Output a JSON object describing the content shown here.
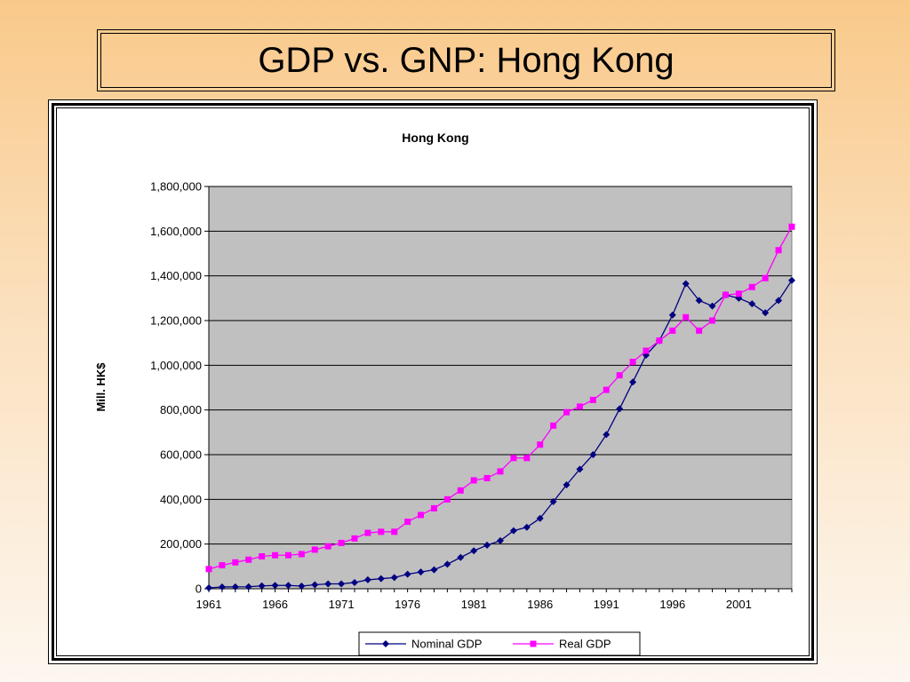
{
  "slide": {
    "title": "GDP vs. GNP: Hong Kong"
  },
  "chart_data": {
    "type": "line",
    "title": "Hong Kong",
    "xlabel": "",
    "ylabel": "Mill. HK$",
    "ylim": [
      0,
      1800000
    ],
    "yticks": [
      0,
      200000,
      400000,
      600000,
      800000,
      1000000,
      1200000,
      1400000,
      1600000,
      1800000
    ],
    "ytick_labels": [
      "0",
      "200,000",
      "400,000",
      "600,000",
      "800,000",
      "1,000,000",
      "1,200,000",
      "1,400,000",
      "1,600,000",
      "1,800,000"
    ],
    "xlim": [
      1961,
      2005
    ],
    "xtick_labels": [
      "1961",
      "1966",
      "1971",
      "1976",
      "1981",
      "1986",
      "1991",
      "1996",
      "2001"
    ],
    "grid": true,
    "legend_position": "bottom",
    "x": [
      1961,
      1962,
      1963,
      1964,
      1965,
      1966,
      1967,
      1968,
      1969,
      1970,
      1971,
      1972,
      1973,
      1974,
      1975,
      1976,
      1977,
      1978,
      1979,
      1980,
      1981,
      1982,
      1983,
      1984,
      1985,
      1986,
      1987,
      1988,
      1989,
      1990,
      1991,
      1992,
      1993,
      1994,
      1995,
      1996,
      1997,
      1998,
      1999,
      2000,
      2001,
      2002,
      2003,
      2004,
      2005
    ],
    "series": [
      {
        "name": "Nominal GDP",
        "color": "#000080",
        "marker": "diamond",
        "values": [
          4000,
          8000,
          8500,
          9000,
          13000,
          15000,
          15000,
          12000,
          18000,
          22000,
          22000,
          28000,
          40000,
          45000,
          50000,
          65000,
          75000,
          85000,
          110000,
          140000,
          170000,
          195000,
          215000,
          260000,
          275000,
          315000,
          390000,
          465000,
          535000,
          600000,
          690000,
          805000,
          925000,
          1045000,
          1110000,
          1225000,
          1365000,
          1290000,
          1265000,
          1315000,
          1300000,
          1275000,
          1235000,
          1290000,
          1380000
        ]
      },
      {
        "name": "Real GDP",
        "color": "#ff00ff",
        "marker": "square",
        "values": [
          88000,
          105000,
          118000,
          130000,
          145000,
          150000,
          150000,
          155000,
          175000,
          190000,
          205000,
          225000,
          250000,
          255000,
          255000,
          300000,
          330000,
          360000,
          400000,
          440000,
          485000,
          495000,
          525000,
          585000,
          585000,
          645000,
          730000,
          790000,
          815000,
          845000,
          890000,
          955000,
          1015000,
          1065000,
          1110000,
          1155000,
          1215000,
          1155000,
          1200000,
          1315000,
          1320000,
          1350000,
          1390000,
          1515000,
          1620000
        ]
      }
    ]
  }
}
